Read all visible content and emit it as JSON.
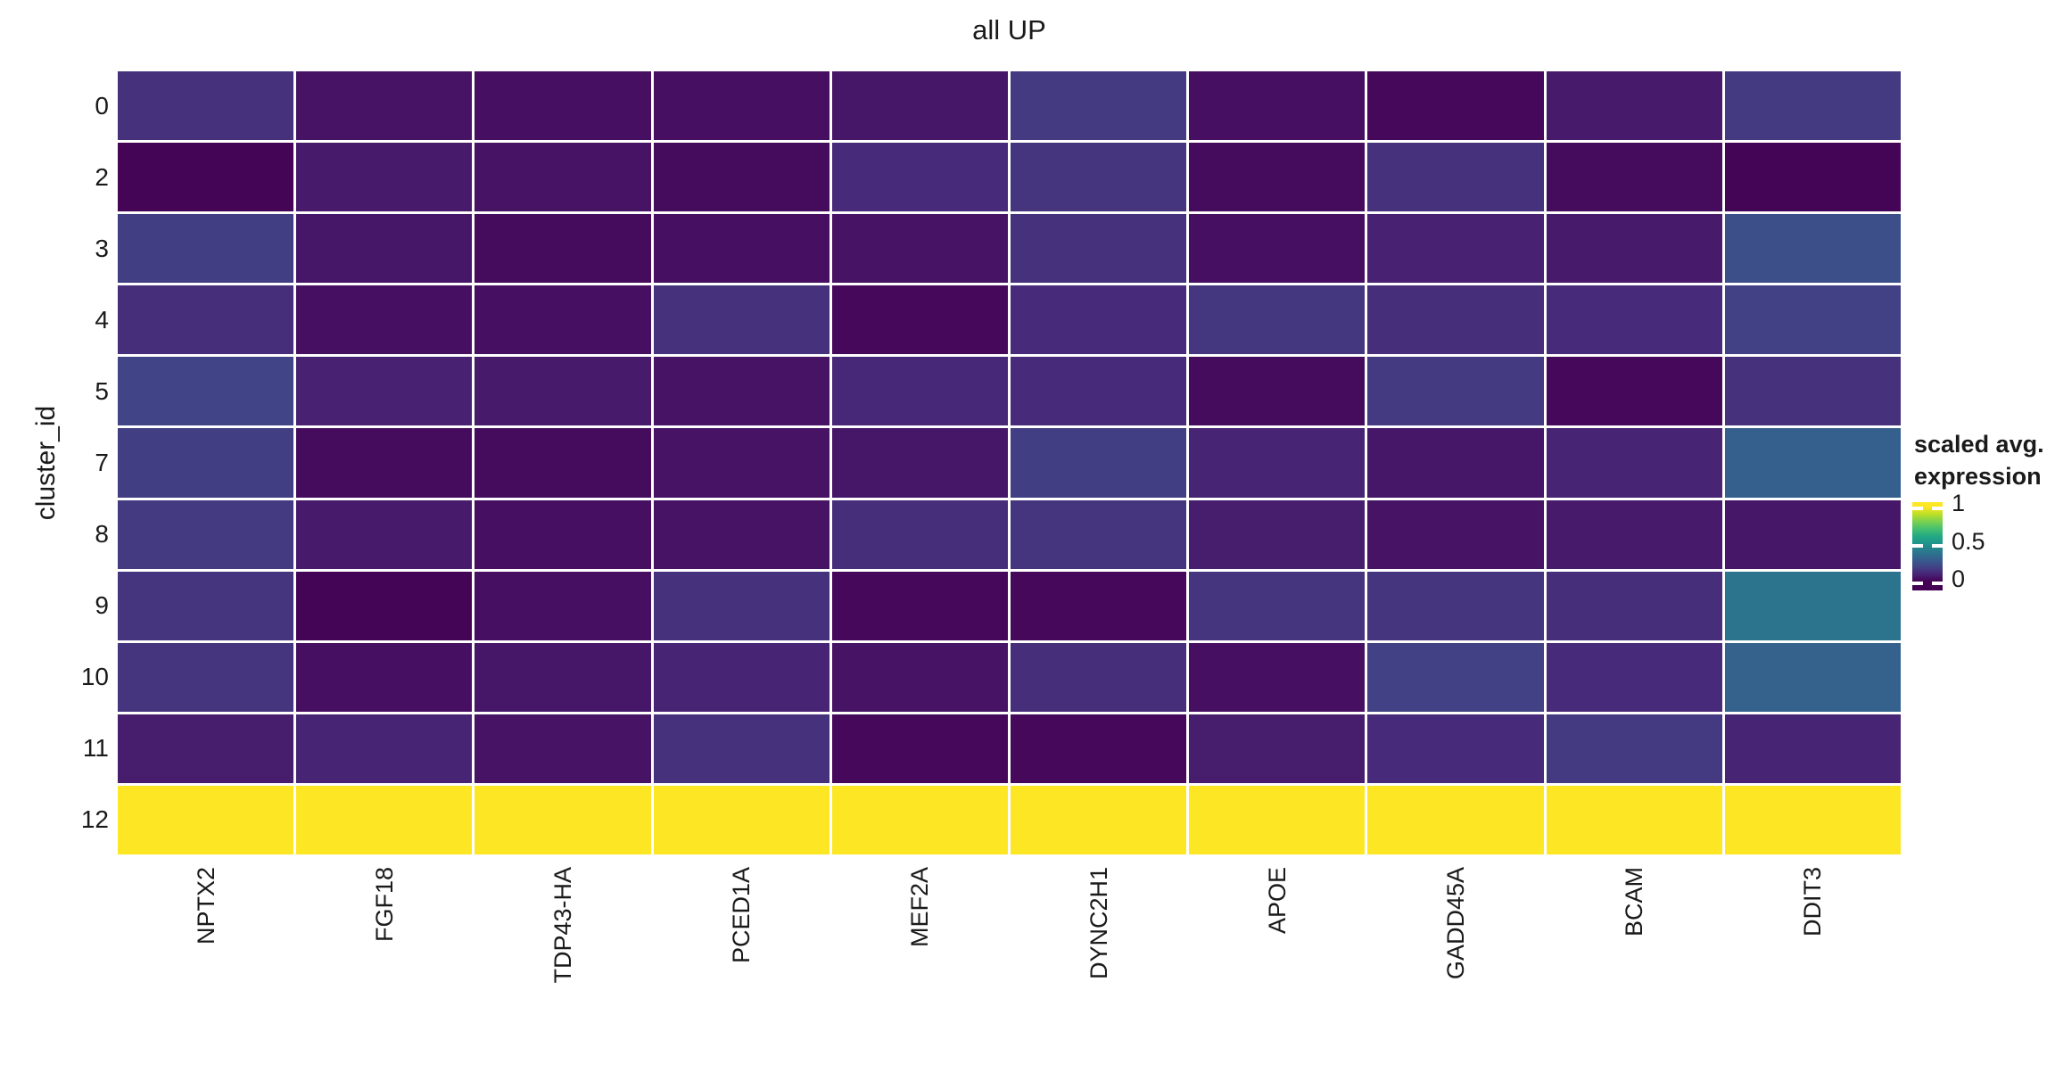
{
  "figure": {
    "background_color": "#ffffff",
    "grid_line_color": "#ffffff",
    "text_color": "#1a1a1a"
  },
  "chart_data": {
    "type": "heatmap",
    "title": "all UP",
    "xlabel": "",
    "ylabel": "cluster_id",
    "columns": [
      "NPTX2",
      "FGF18",
      "TDP43-HA",
      "PCED1A",
      "MEF2A",
      "DYNC2H1",
      "APOE",
      "GADD45A",
      "BCAM",
      "DDIT3"
    ],
    "rows": [
      "0",
      "2",
      "3",
      "4",
      "5",
      "7",
      "8",
      "9",
      "10",
      "11",
      "12"
    ],
    "values": [
      [
        0.14,
        0.05,
        0.04,
        0.04,
        0.06,
        0.17,
        0.04,
        0.02,
        0.07,
        0.17
      ],
      [
        0.01,
        0.07,
        0.05,
        0.03,
        0.12,
        0.15,
        0.03,
        0.14,
        0.03,
        0.01
      ],
      [
        0.18,
        0.06,
        0.03,
        0.04,
        0.05,
        0.14,
        0.04,
        0.09,
        0.07,
        0.24
      ],
      [
        0.13,
        0.04,
        0.04,
        0.14,
        0.02,
        0.12,
        0.16,
        0.13,
        0.12,
        0.19
      ],
      [
        0.2,
        0.09,
        0.07,
        0.05,
        0.11,
        0.12,
        0.03,
        0.17,
        0.02,
        0.14
      ],
      [
        0.18,
        0.03,
        0.03,
        0.05,
        0.06,
        0.18,
        0.1,
        0.06,
        0.1,
        0.3
      ],
      [
        0.17,
        0.07,
        0.04,
        0.05,
        0.13,
        0.15,
        0.08,
        0.05,
        0.07,
        0.06
      ],
      [
        0.15,
        0.01,
        0.04,
        0.14,
        0.02,
        0.02,
        0.15,
        0.15,
        0.13,
        0.38
      ],
      [
        0.15,
        0.04,
        0.06,
        0.1,
        0.05,
        0.13,
        0.04,
        0.19,
        0.12,
        0.31
      ],
      [
        0.08,
        0.1,
        0.05,
        0.14,
        0.02,
        0.02,
        0.08,
        0.12,
        0.17,
        0.1
      ],
      [
        1,
        1,
        1,
        1,
        1,
        1,
        1,
        1,
        1,
        1
      ]
    ],
    "value_domain": [
      0,
      1
    ],
    "colormap": "viridis",
    "colormap_stops": [
      "#440154",
      "#482475",
      "#414487",
      "#355f8d",
      "#2a788e",
      "#21918c",
      "#22a884",
      "#44bf70",
      "#7ad151",
      "#bddf26",
      "#fde725"
    ],
    "legend": {
      "title_line1": "scaled avg.",
      "title_line2": "expression",
      "position": "right",
      "ticks": [
        {
          "label": "1",
          "value": 1
        },
        {
          "label": "0.5",
          "value": 0.5
        },
        {
          "label": "0",
          "value": 0
        }
      ]
    },
    "layout": {
      "grid": false,
      "legend_position": "right",
      "x_tick_rotation": -90
    }
  }
}
